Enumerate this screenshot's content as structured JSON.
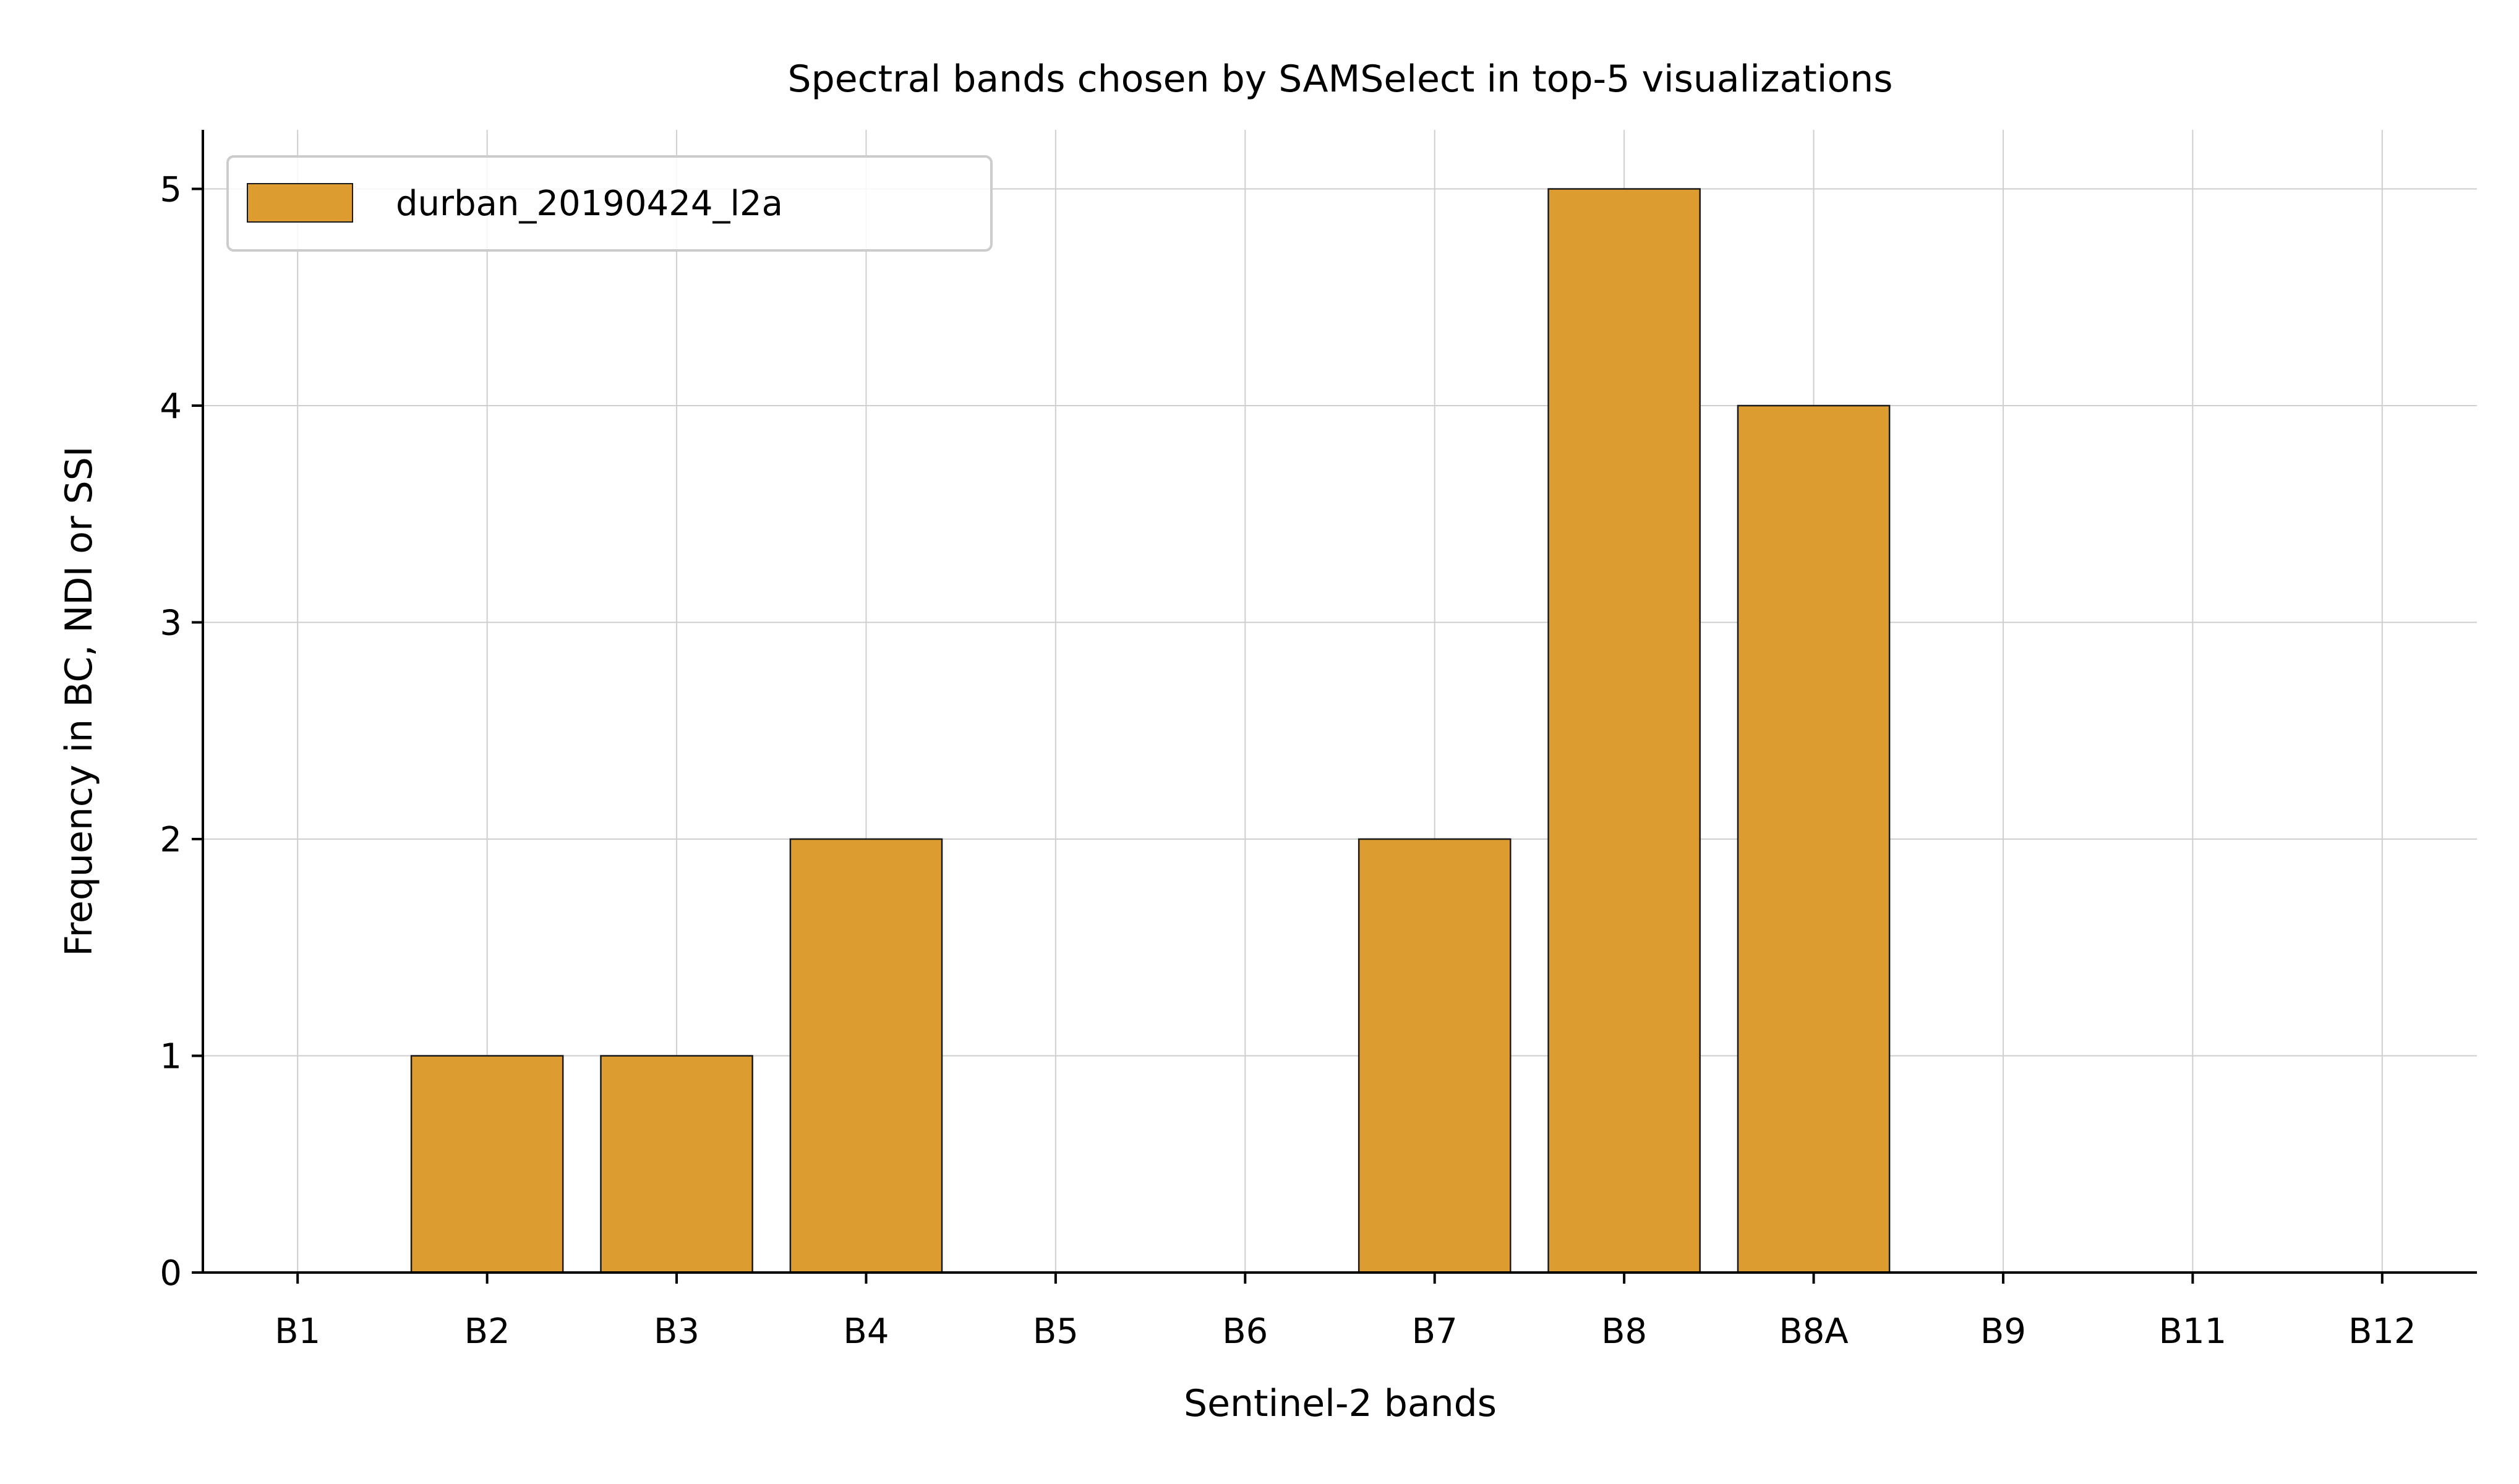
{
  "chart_data": {
    "type": "bar",
    "title": "Spectral bands chosen by SAMSelect in top-5 visualizations",
    "xlabel": "Sentinel-2 bands",
    "ylabel": "Frequency in BC, NDI or SSI",
    "categories": [
      "B1",
      "B2",
      "B3",
      "B4",
      "B5",
      "B6",
      "B7",
      "B8",
      "B8A",
      "B9",
      "B11",
      "B12"
    ],
    "series": [
      {
        "name": "durban_20190424_l2a",
        "values": [
          0,
          1,
          1,
          2,
          0,
          0,
          2,
          5,
          4,
          0,
          0,
          0
        ],
        "color": "#dd9c2f"
      }
    ],
    "ylim": [
      0,
      5.25
    ],
    "yticks": [
      0,
      1,
      2,
      3,
      4,
      5
    ],
    "grid": true,
    "legend_position": "upper-left"
  },
  "style": {
    "bar_edge_color": "#1a1a1a",
    "grid_color": "#cfcfcf",
    "axis_color": "#000000"
  }
}
